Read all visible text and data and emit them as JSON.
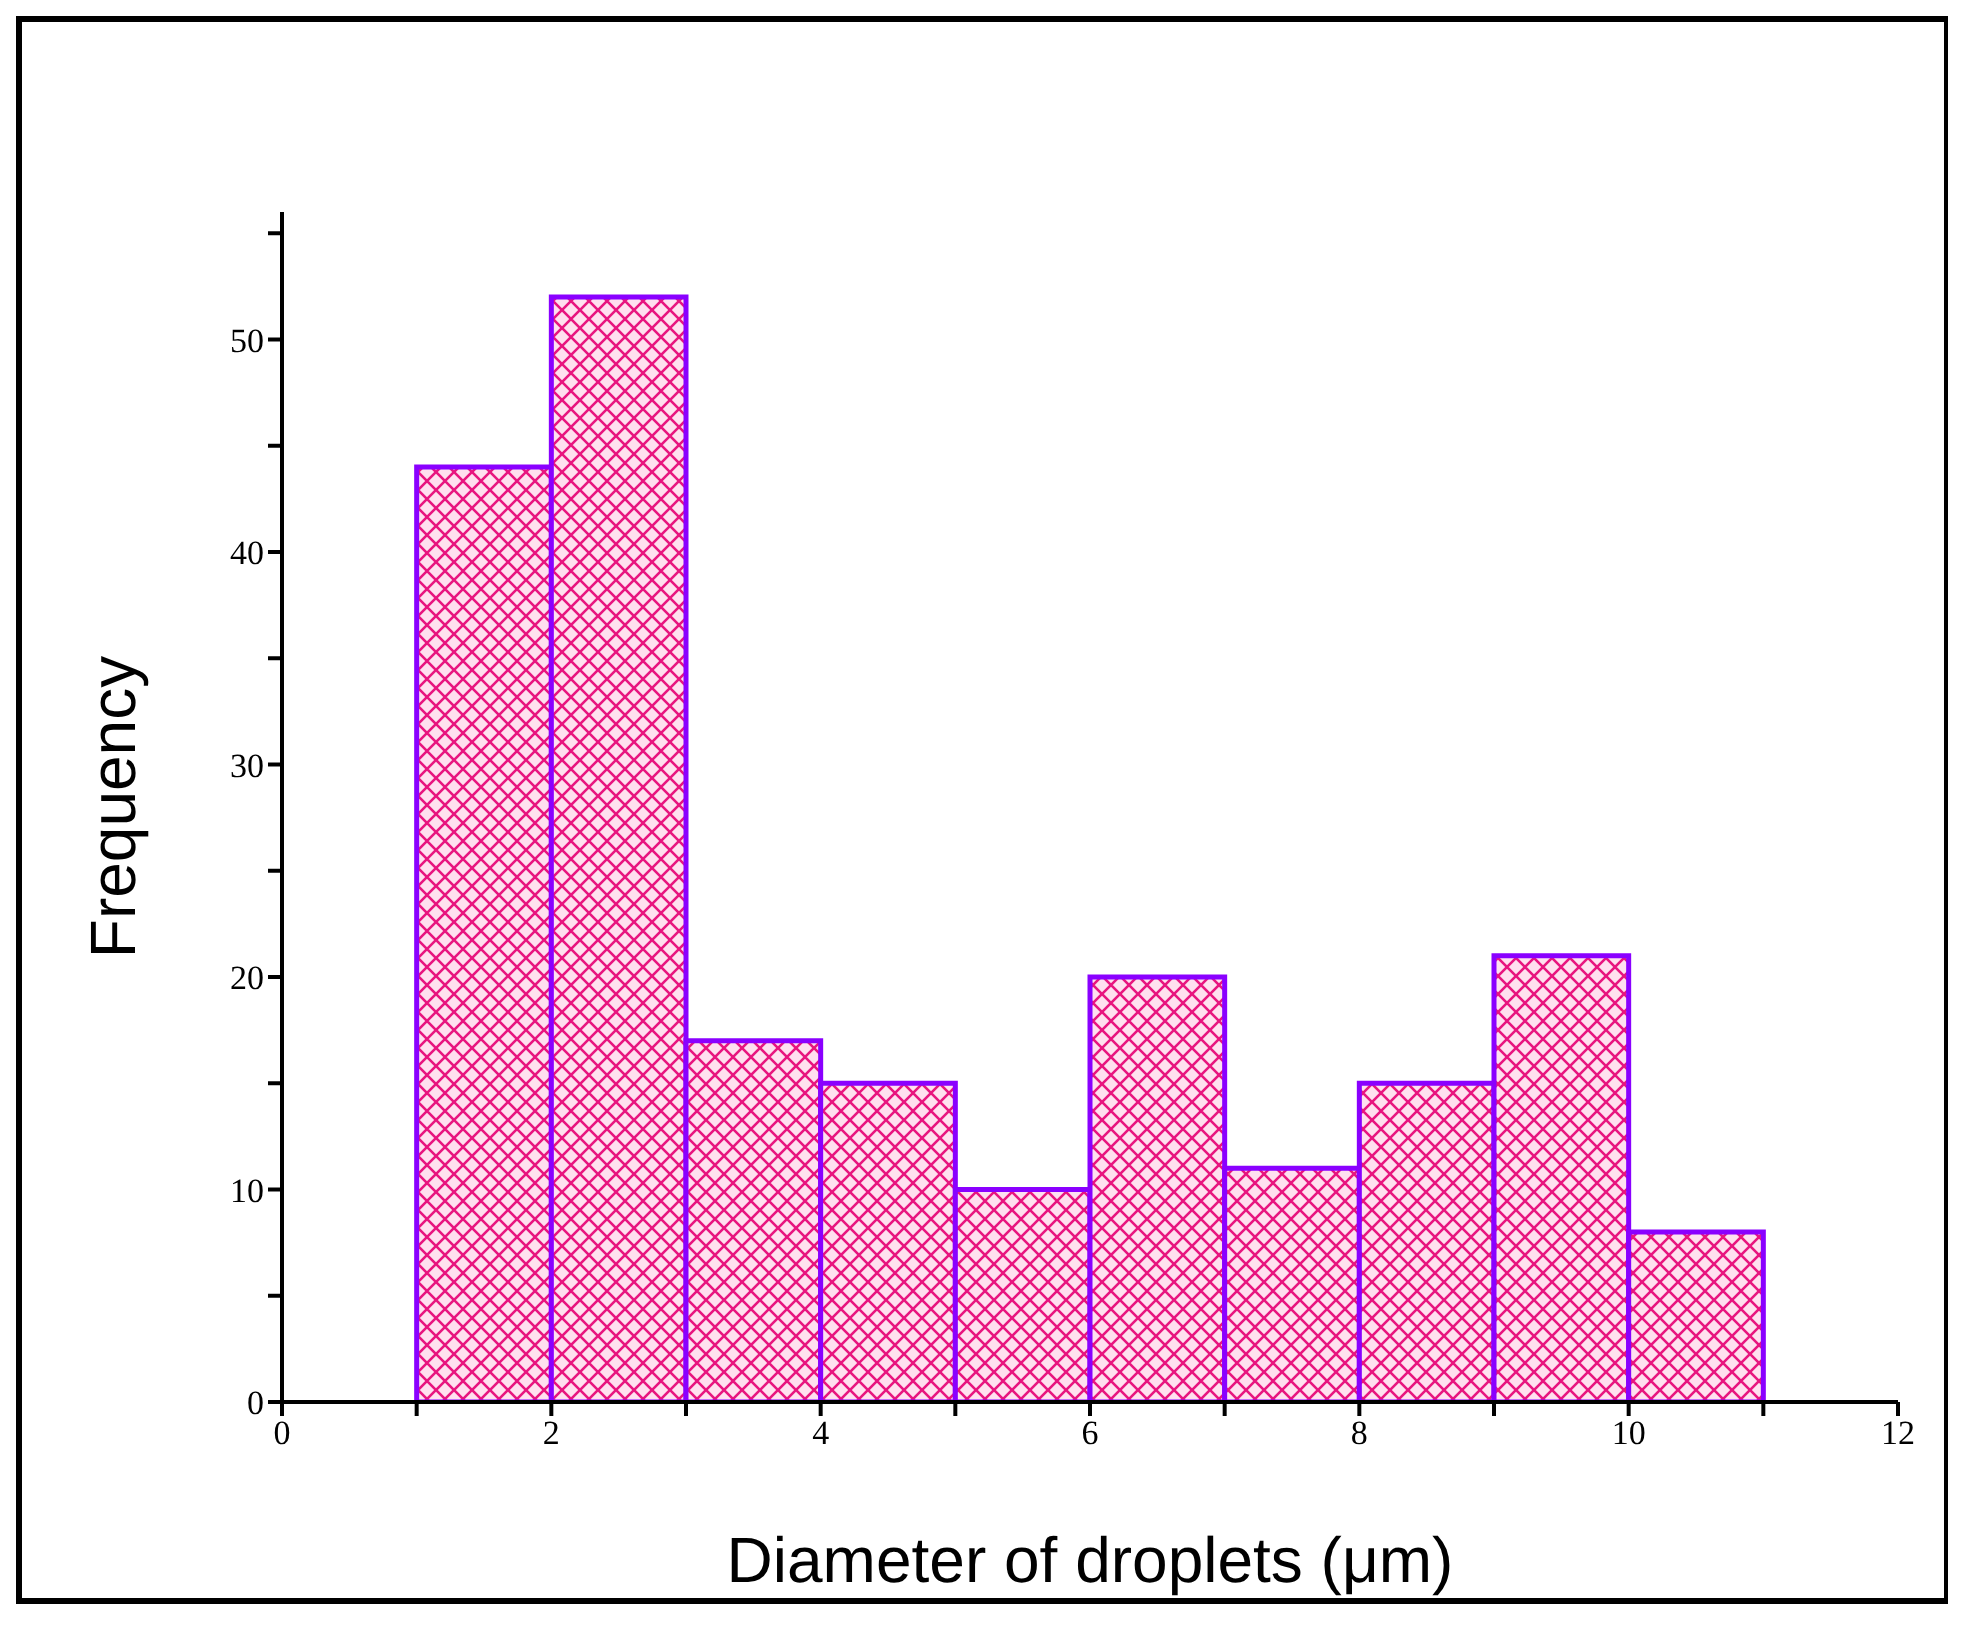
{
  "chart_data": {
    "type": "histogram",
    "xlabel": "Diameter of droplets (μm)",
    "ylabel": "Frequency",
    "bins": [
      1,
      2,
      3,
      4,
      5,
      6,
      7,
      8,
      9,
      10,
      11
    ],
    "values": [
      44,
      52,
      17,
      15,
      10,
      20,
      11,
      15,
      21,
      8
    ],
    "color": "#8a00ff",
    "xlim": [
      0,
      12
    ],
    "xticks": [
      0,
      {
        "value": 1,
        "label": null
      },
      2,
      {
        "value": 3,
        "label": null
      },
      4,
      {
        "value": 5,
        "label": null
      },
      6,
      {
        "value": 7,
        "label": null
      },
      8,
      {
        "value": 9,
        "label": null
      },
      10,
      {
        "value": 11,
        "label": null
      },
      12
    ],
    "ylim": [
      0,
      56
    ],
    "yticks": [
      0,
      {
        "value": 5,
        "label": null
      },
      10,
      {
        "value": 15,
        "label": null
      },
      20,
      {
        "value": 25,
        "label": null
      },
      30,
      {
        "value": 35,
        "label": null
      },
      40,
      {
        "value": 45,
        "label": null
      },
      50,
      {
        "value": 55,
        "label": null
      }
    ],
    "grid": false,
    "legend": false
  }
}
